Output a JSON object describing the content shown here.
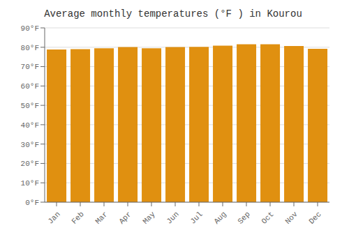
{
  "chart_data": {
    "type": "bar",
    "title": "Average monthly temperatures (°F ) in Kourou",
    "categories": [
      "Jan",
      "Feb",
      "Mar",
      "Apr",
      "May",
      "Jun",
      "Jul",
      "Aug",
      "Sep",
      "Oct",
      "Nov",
      "Dec"
    ],
    "values": [
      78.8,
      79.0,
      79.5,
      80.1,
      79.5,
      80.1,
      80.2,
      80.8,
      81.5,
      81.5,
      80.6,
      79.2
    ],
    "color": "#E09010",
    "ylim": [
      0,
      90
    ],
    "yticks": [
      {
        "value": 0,
        "label": "0°F"
      },
      {
        "value": 10,
        "label": "10°F"
      },
      {
        "value": 20,
        "label": "20°F"
      },
      {
        "value": 30,
        "label": "30°F"
      },
      {
        "value": 40,
        "label": "40°F"
      },
      {
        "value": 50,
        "label": "50°F"
      },
      {
        "value": 60,
        "label": "60°F"
      },
      {
        "value": 70,
        "label": "70°F"
      },
      {
        "value": 80,
        "label": "80°F"
      },
      {
        "value": 90,
        "label": "90°F"
      }
    ],
    "grid": true
  }
}
